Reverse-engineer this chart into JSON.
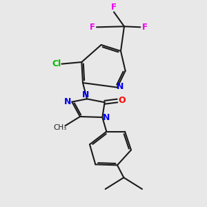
{
  "background_color": "#e8e8e8",
  "bond_color": "#1a1a1a",
  "atom_colors": {
    "N": "#0000ee",
    "O": "#ff0000",
    "Cl": "#00bb00",
    "F": "#ee00ee",
    "C": "#1a1a1a"
  },
  "figsize": [
    3.0,
    3.0
  ],
  "dpi": 100
}
